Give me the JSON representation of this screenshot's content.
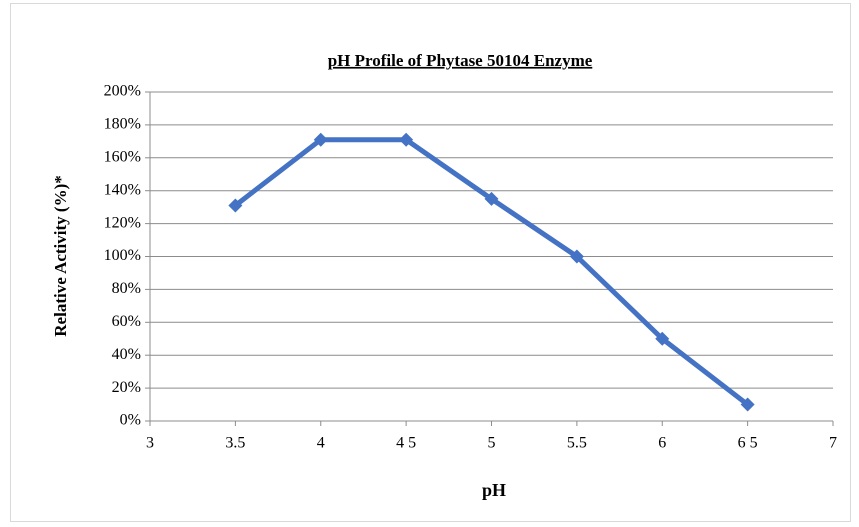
{
  "chart_data": {
    "type": "line",
    "title": "pH Profile of Phytase 50104 Enzyme",
    "x_label": "pH",
    "y_label": "Relative Activity (%)*",
    "x": [
      3.5,
      4,
      4.5,
      5,
      5.5,
      6,
      6.5
    ],
    "series": [
      {
        "name": "Relative Activity",
        "color": "#4472c4",
        "values": [
          131,
          171,
          171,
          135,
          100,
          50,
          10
        ]
      }
    ],
    "xlim": [
      3,
      7
    ],
    "xticks": [
      3,
      3.5,
      4,
      {
        "value": 4.5,
        "label": "4 5"
      },
      5,
      5.5,
      6,
      {
        "value": 6.5,
        "label": "6 5"
      },
      7
    ],
    "ylim": [
      0,
      200
    ],
    "yticks": [
      {
        "value": 0,
        "label": "0%"
      },
      {
        "value": 20,
        "label": "20%"
      },
      {
        "value": 40,
        "label": "40%"
      },
      {
        "value": 60,
        "label": "60%"
      },
      {
        "value": 80,
        "label": "80%"
      },
      {
        "value": 100,
        "label": "100%"
      },
      {
        "value": 120,
        "label": "120%"
      },
      {
        "value": 140,
        "label": "140%"
      },
      {
        "value": 160,
        "label": "160%"
      },
      {
        "value": 180,
        "label": "180%"
      },
      {
        "value": 200,
        "label": "200%"
      }
    ],
    "grid": true
  }
}
